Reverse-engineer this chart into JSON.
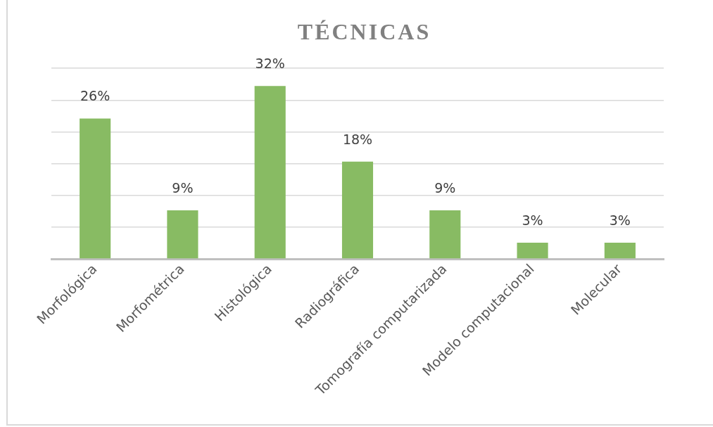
{
  "chart_data": {
    "type": "bar",
    "title": "TÉCNICAS",
    "categories": [
      "Morfológica",
      "Morfométrica",
      "Histológica",
      "Radiográfica",
      "Tomografía computarizada",
      "Modelo computacional",
      "Molecular"
    ],
    "values": [
      26,
      9,
      32,
      18,
      9,
      3,
      3
    ],
    "value_labels": [
      "26%",
      "9%",
      "32%",
      "18%",
      "9%",
      "3%",
      "3%"
    ],
    "color": "#88bb63",
    "ylim": [
      0,
      35.3
    ],
    "yticks": [
      {
        "value": 0,
        "label": null
      },
      {
        "value": 5.9,
        "label": null
      },
      {
        "value": 11.8,
        "label": null
      },
      {
        "value": 17.6,
        "label": null
      },
      {
        "value": 23.5,
        "label": null
      },
      {
        "value": 29.4,
        "label": null
      },
      {
        "value": 35.3,
        "label": null
      }
    ],
    "grid": "y",
    "tick_labels": "x"
  }
}
